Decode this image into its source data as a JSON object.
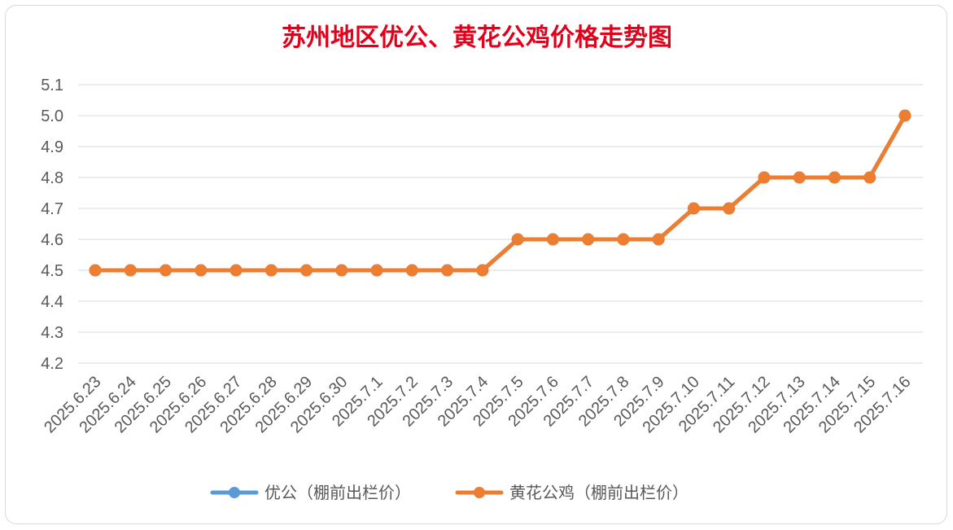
{
  "chart_data": {
    "type": "line",
    "title": "苏州地区优公、黄花公鸡价格走势图",
    "xlabel": "",
    "ylabel": "",
    "categories": [
      "2025.6.23",
      "2025.6.24",
      "2025.6.25",
      "2025.6.26",
      "2025.6.27",
      "2025.6.28",
      "2025.6.29",
      "2025.6.30",
      "2025.7.1",
      "2025.7.2",
      "2025.7.3",
      "2025.7.4",
      "2025.7.5",
      "2025.7.6",
      "2025.7.7",
      "2025.7.8",
      "2025.7.9",
      "2025.7.10",
      "2025.7.11",
      "2025.7.12",
      "2025.7.13",
      "2025.7.14",
      "2025.7.15",
      "2025.7.16"
    ],
    "series": [
      {
        "name": "优公（棚前出栏价）",
        "color": "#5b9bd5",
        "values": [
          4.5,
          4.5,
          4.5,
          4.5,
          4.5,
          4.5,
          4.5,
          4.5,
          4.5,
          4.5,
          4.5,
          4.5,
          4.6,
          4.6,
          4.6,
          4.6,
          4.6,
          4.7,
          4.7,
          4.8,
          4.8,
          4.8,
          4.8,
          5.0
        ]
      },
      {
        "name": "黄花公鸡（棚前出栏价）",
        "color": "#ed7d31",
        "values": [
          4.5,
          4.5,
          4.5,
          4.5,
          4.5,
          4.5,
          4.5,
          4.5,
          4.5,
          4.5,
          4.5,
          4.5,
          4.6,
          4.6,
          4.6,
          4.6,
          4.6,
          4.7,
          4.7,
          4.8,
          4.8,
          4.8,
          4.8,
          5.0
        ]
      }
    ],
    "ylim": [
      4.2,
      5.1
    ],
    "yticks": [
      "4.2",
      "4.3",
      "4.4",
      "4.5",
      "4.6",
      "4.7",
      "4.8",
      "4.9",
      "5.0",
      "5.1"
    ],
    "grid": true,
    "legend": "bottom",
    "title_color": "#e3001b"
  }
}
